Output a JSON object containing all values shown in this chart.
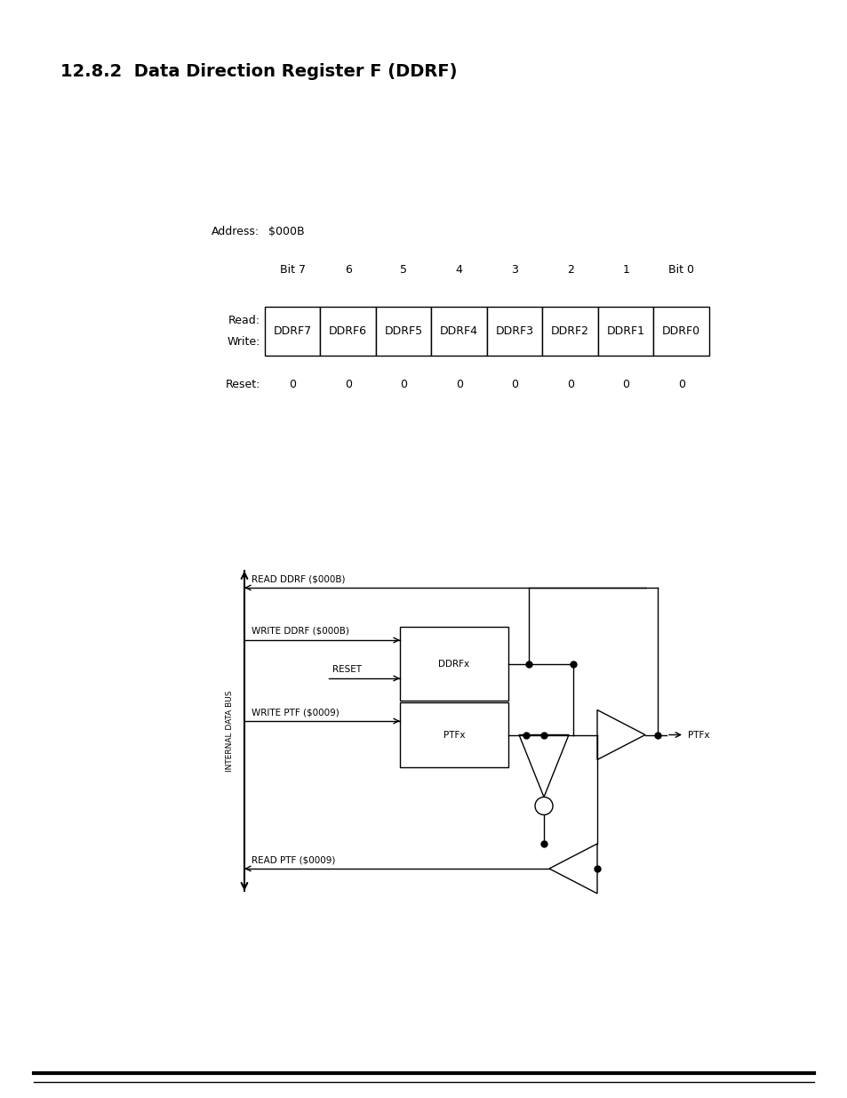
{
  "title": "12.8.2  Data Direction Register F (DDRF)",
  "title_fontsize": 13,
  "address_label": "Address:",
  "address_value": "$000B",
  "bit_headers": [
    "Bit 7",
    "6",
    "5",
    "4",
    "3",
    "2",
    "1",
    "Bit 0"
  ],
  "cell_labels": [
    "DDRF7",
    "DDRF6",
    "DDRF5",
    "DDRF4",
    "DDRF3",
    "DDRF2",
    "DDRF1",
    "DDRF0"
  ],
  "reset_label": "Reset:",
  "reset_values": [
    "0",
    "0",
    "0",
    "0",
    "0",
    "0",
    "0",
    "0"
  ],
  "bg_color": "#ffffff",
  "text_color": "#000000",
  "diagram_labels": {
    "bus_label": "INTERNAL DATA BUS",
    "read_ddrf": "READ DDRF ($000B)",
    "write_ddrf": "WRITE DDRF ($000B)",
    "reset": "RESET",
    "write_ptf": "WRITE PTF ($0009)",
    "read_ptf": "READ PTF ($0009)",
    "ddrfx": "DDRFx",
    "ptfx_box": "PTFx",
    "ptfx_out": "PTFx"
  }
}
